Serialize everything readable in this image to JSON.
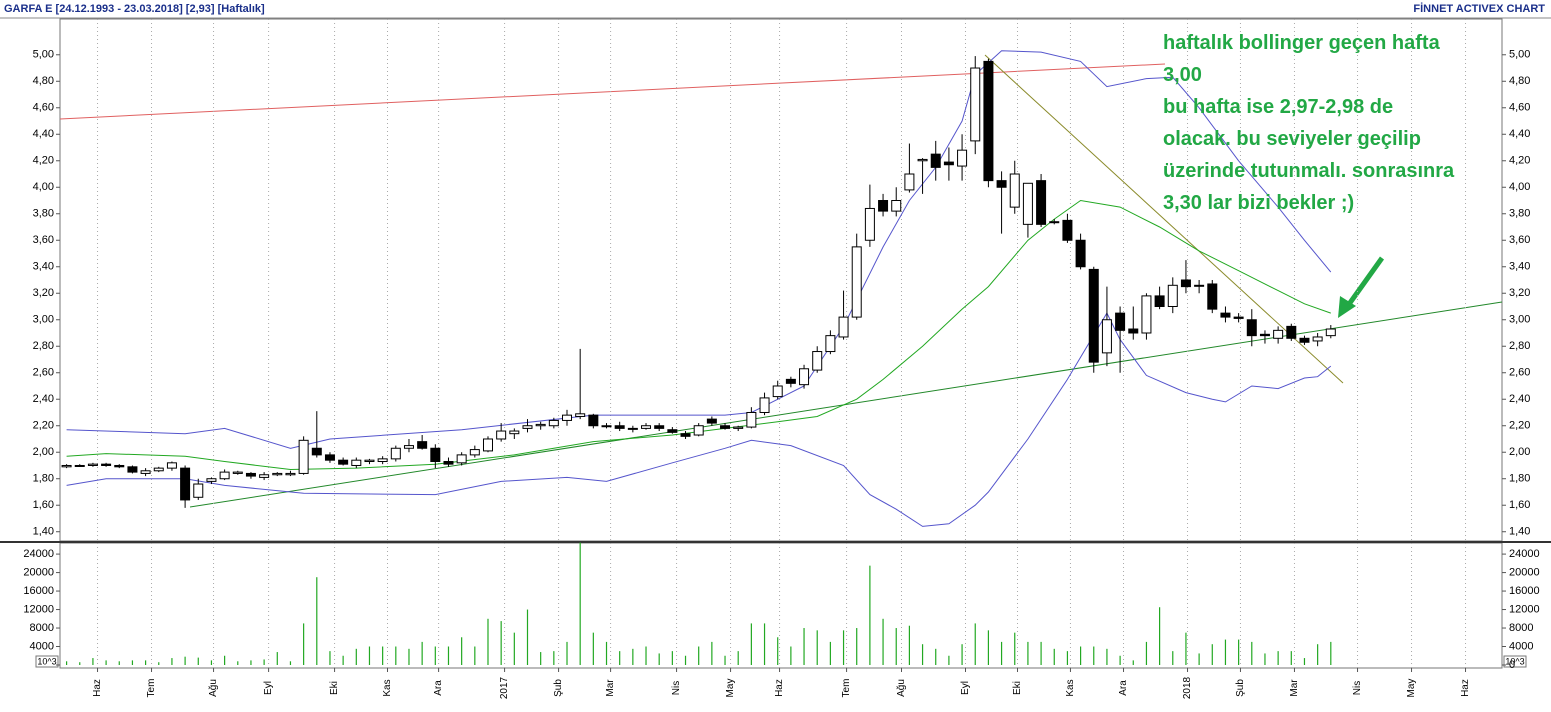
{
  "chart_data": {
    "type": "candlestick",
    "title": "GARFA E  [24.12.1993 - 23.03.2018]  [2,93]  [Haftalık]",
    "source": "FİNNET ACTIVEX CHART",
    "annotation": [
      "haftalık bollinger geçen hafta",
      "3,00",
      "bu hafta ise 2,97-2,98 de",
      "olacak. bu seviyeler geçilip",
      "üzerinde tutunmalı. sonrasınra",
      "3,30 lar bizi bekler ;)"
    ],
    "open": [
      1.89,
      1.9,
      1.9,
      1.91,
      1.9,
      1.89,
      1.84,
      1.86,
      1.88,
      1.88,
      1.66,
      1.78,
      1.8,
      1.84,
      1.84,
      1.81,
      1.83,
      1.83,
      1.84,
      2.03,
      1.98,
      1.94,
      1.9,
      1.93,
      1.93,
      1.95,
      2.03,
      2.08,
      2.03,
      1.93,
      1.92,
      1.98,
      2.01,
      2.1,
      2.14,
      2.18,
      2.2,
      2.2,
      2.24,
      2.27,
      2.28,
      2.2,
      2.2,
      2.18,
      2.18,
      2.2,
      2.17,
      2.14,
      2.13,
      2.25,
      2.2,
      2.18,
      2.19,
      2.3,
      2.42,
      2.55,
      2.51,
      2.62,
      2.76,
      2.87,
      3.02,
      3.6,
      3.9,
      3.82,
      3.98,
      4.2,
      4.25,
      4.19,
      4.16,
      4.35,
      4.95,
      4.05,
      3.85,
      3.72,
      4.05,
      3.74,
      3.75,
      3.6,
      3.38,
      2.75,
      3.05,
      2.93,
      2.9,
      3.18,
      3.1,
      3.3,
      3.26,
      3.27,
      3.05,
      3.02,
      3.0,
      2.89,
      2.86,
      2.95,
      2.86,
      2.84,
      2.88
    ],
    "high": [
      1.91,
      1.91,
      1.92,
      1.92,
      1.91,
      1.9,
      1.88,
      1.89,
      1.93,
      1.9,
      1.8,
      1.81,
      1.87,
      1.86,
      1.85,
      1.85,
      1.85,
      1.86,
      2.12,
      2.31,
      2.0,
      1.96,
      1.96,
      1.95,
      1.97,
      2.05,
      2.1,
      2.13,
      2.06,
      1.96,
      2.0,
      2.05,
      2.12,
      2.22,
      2.18,
      2.25,
      2.23,
      2.26,
      2.32,
      2.78,
      2.29,
      2.22,
      2.23,
      2.2,
      2.22,
      2.22,
      2.19,
      2.16,
      2.22,
      2.27,
      2.22,
      2.2,
      2.34,
      2.45,
      2.54,
      2.57,
      2.66,
      2.8,
      2.92,
      3.22,
      3.65,
      4.02,
      3.95,
      4.0,
      4.33,
      4.22,
      4.35,
      4.3,
      4.4,
      4.99,
      4.97,
      4.12,
      4.2,
      4.03,
      4.1,
      3.76,
      3.8,
      3.65,
      3.4,
      3.25,
      3.1,
      3.1,
      3.2,
      3.25,
      3.32,
      3.45,
      3.3,
      3.3,
      3.1,
      3.05,
      3.08,
      2.92,
      2.95,
      2.97,
      2.88,
      2.9,
      2.96
    ],
    "low": [
      1.88,
      1.89,
      1.89,
      1.89,
      1.88,
      1.84,
      1.82,
      1.85,
      1.86,
      1.58,
      1.64,
      1.76,
      1.79,
      1.83,
      1.8,
      1.79,
      1.82,
      1.82,
      1.83,
      1.96,
      1.92,
      1.9,
      1.88,
      1.91,
      1.91,
      1.93,
      2.0,
      2.02,
      1.88,
      1.89,
      1.9,
      1.96,
      2.0,
      2.08,
      2.1,
      2.15,
      2.17,
      2.18,
      2.2,
      2.25,
      2.18,
      2.18,
      2.16,
      2.15,
      2.17,
      2.16,
      2.14,
      2.1,
      2.12,
      2.2,
      2.17,
      2.16,
      2.18,
      2.28,
      2.4,
      2.49,
      2.48,
      2.6,
      2.74,
      2.85,
      3.0,
      3.55,
      3.78,
      3.78,
      3.96,
      3.95,
      4.05,
      4.05,
      4.05,
      4.25,
      4.0,
      3.65,
      3.8,
      3.62,
      3.7,
      3.72,
      3.58,
      3.38,
      2.6,
      2.65,
      2.6,
      2.85,
      2.85,
      3.08,
      3.05,
      3.2,
      3.2,
      3.05,
      2.98,
      2.98,
      2.8,
      2.82,
      2.82,
      2.84,
      2.81,
      2.8,
      2.86
    ],
    "close": [
      1.9,
      1.9,
      1.91,
      1.9,
      1.89,
      1.85,
      1.86,
      1.88,
      1.92,
      1.64,
      1.76,
      1.8,
      1.85,
      1.85,
      1.82,
      1.83,
      1.84,
      1.84,
      2.09,
      1.98,
      1.94,
      1.91,
      1.94,
      1.94,
      1.95,
      2.03,
      2.05,
      2.03,
      1.93,
      1.91,
      1.98,
      2.02,
      2.1,
      2.16,
      2.16,
      2.2,
      2.21,
      2.24,
      2.28,
      2.29,
      2.2,
      2.2,
      2.18,
      2.18,
      2.2,
      2.18,
      2.15,
      2.12,
      2.2,
      2.22,
      2.18,
      2.19,
      2.3,
      2.41,
      2.5,
      2.52,
      2.63,
      2.76,
      2.88,
      3.02,
      3.55,
      3.84,
      3.82,
      3.9,
      4.1,
      4.21,
      4.15,
      4.17,
      4.28,
      4.9,
      4.05,
      4.0,
      4.1,
      4.03,
      3.72,
      3.74,
      3.6,
      3.4,
      2.68,
      3.0,
      2.92,
      2.9,
      3.18,
      3.1,
      3.26,
      3.25,
      3.26,
      3.08,
      3.02,
      3.01,
      2.88,
      2.88,
      2.92,
      2.86,
      2.83,
      2.87,
      2.93
    ],
    "volume": [
      800,
      600,
      1500,
      1000,
      800,
      1000,
      1000,
      600,
      1500,
      1800,
      1600,
      1000,
      2000,
      800,
      1000,
      1200,
      2800,
      800,
      9000,
      19000,
      3000,
      2000,
      3500,
      4000,
      4000,
      4000,
      3500,
      5000,
      4000,
      4000,
      6000,
      4000,
      10000,
      9500,
      7000,
      12000,
      2800,
      3000,
      5000,
      26500,
      7000,
      5000,
      3000,
      3500,
      4000,
      2500,
      3000,
      2000,
      4000,
      5000,
      2000,
      3000,
      9000,
      9000,
      6000,
      4000,
      8000,
      7500,
      5000,
      7500,
      8000,
      21500,
      10000,
      8000,
      8500,
      4500,
      3500,
      2000,
      4500,
      9000,
      7500,
      5000,
      7000,
      5000,
      5000,
      3500,
      3000,
      4000,
      4000,
      3500,
      2000,
      1000,
      5000,
      12500,
      3000,
      7000,
      2500,
      4500,
      5500,
      5500,
      5000,
      2500,
      3000,
      3000,
      1500,
      4500,
      5000
    ],
    "volume_color": "#22a822",
    "volume_unit": "10^3",
    "bands": [
      {
        "color": "#5555cc",
        "x": [
          0,
          9,
          12,
          17,
          20,
          30,
          40,
          45,
          50,
          52,
          56,
          59,
          62,
          64,
          66,
          68,
          69,
          71,
          74,
          77,
          79,
          82,
          84,
          86,
          89,
          92,
          94,
          96
        ],
        "values": [
          2.17,
          2.14,
          2.18,
          2.03,
          2.1,
          2.17,
          2.28,
          2.28,
          2.28,
          2.3,
          2.5,
          2.95,
          3.55,
          3.9,
          4.15,
          4.5,
          4.85,
          5.03,
          5.02,
          4.95,
          4.76,
          4.82,
          4.83,
          4.6,
          4.2,
          3.85,
          3.6,
          3.36
        ]
      },
      {
        "color": "#22a822",
        "x": [
          0,
          3,
          9,
          12,
          17,
          22,
          28,
          34,
          40,
          46,
          50,
          54,
          57,
          60,
          62,
          65,
          68,
          70,
          73,
          75,
          77,
          80,
          83,
          86,
          89,
          92,
          94,
          96
        ],
        "values": [
          1.97,
          1.99,
          1.97,
          1.93,
          1.87,
          1.88,
          1.91,
          1.98,
          2.08,
          2.13,
          2.18,
          2.23,
          2.27,
          2.4,
          2.55,
          2.8,
          3.08,
          3.25,
          3.6,
          3.76,
          3.9,
          3.85,
          3.7,
          3.52,
          3.37,
          3.22,
          3.12,
          3.05
        ]
      },
      {
        "color": "#5555cc",
        "x": [
          0,
          3,
          9,
          12,
          18,
          28,
          33,
          38,
          41,
          46,
          50,
          52,
          55,
          59,
          61,
          63,
          65,
          67,
          69,
          70,
          73,
          76,
          79,
          80,
          82,
          85,
          87,
          88,
          90,
          92,
          94,
          95,
          96
        ],
        "values": [
          1.75,
          1.8,
          1.8,
          1.75,
          1.69,
          1.68,
          1.78,
          1.81,
          1.78,
          1.92,
          2.03,
          2.09,
          2.05,
          1.9,
          1.68,
          1.57,
          1.44,
          1.46,
          1.6,
          1.7,
          2.1,
          2.55,
          3.05,
          2.85,
          2.58,
          2.45,
          2.4,
          2.38,
          2.5,
          2.48,
          2.56,
          2.57,
          2.65
        ]
      }
    ],
    "up_color": "#ffffff",
    "down_color": "#000000",
    "xlim": [
      -0.5,
      109
    ],
    "ylim": [
      1.33,
      5.27
    ],
    "y2lim": [
      -650,
      26400
    ],
    "xticks": [
      {
        "value": 2.35,
        "label": "Haz"
      },
      {
        "value": 6.45,
        "label": "Tem"
      },
      {
        "value": 11.16,
        "label": "Ağu"
      },
      {
        "value": 15.34,
        "label": "Eyl"
      },
      {
        "value": 20.35,
        "label": "Eki"
      },
      {
        "value": 24.37,
        "label": "Kas"
      },
      {
        "value": 28.25,
        "label": "Ara"
      },
      {
        "value": 33.26,
        "label": "2017"
      },
      {
        "value": 37.36,
        "label": "Şub"
      },
      {
        "value": 41.31,
        "label": "Mar"
      },
      {
        "value": 46.32,
        "label": "Nis"
      },
      {
        "value": 50.42,
        "label": "May"
      },
      {
        "value": 54.14,
        "label": "Haz"
      },
      {
        "value": 59.23,
        "label": "Tem"
      },
      {
        "value": 63.4,
        "label": "Ağu"
      },
      {
        "value": 68.26,
        "label": "Eyl"
      },
      {
        "value": 72.21,
        "label": "Eki"
      },
      {
        "value": 76.23,
        "label": "Kas"
      },
      {
        "value": 80.26,
        "label": "Ara"
      },
      {
        "value": 85.12,
        "label": "2018"
      },
      {
        "value": 89.14,
        "label": "Şub"
      },
      {
        "value": 93.24,
        "label": "Mar"
      },
      {
        "value": 98.03,
        "label": "Nis"
      },
      {
        "value": 102.13,
        "label": "May"
      },
      {
        "value": 106.23,
        "label": "Haz"
      }
    ],
    "yticks": [
      {
        "value": 1.4,
        "label": "1,40"
      },
      {
        "value": 1.6,
        "label": "1,60"
      },
      {
        "value": 1.8,
        "label": "1,80"
      },
      {
        "value": 2.0,
        "label": "2,00"
      },
      {
        "value": 2.2,
        "label": "2,20"
      },
      {
        "value": 2.4,
        "label": "2,40"
      },
      {
        "value": 2.6,
        "label": "2,60"
      },
      {
        "value": 2.8,
        "label": "2,80"
      },
      {
        "value": 3.0,
        "label": "3,00"
      },
      {
        "value": 3.2,
        "label": "3,20"
      },
      {
        "value": 3.4,
        "label": "3,40"
      },
      {
        "value": 3.6,
        "label": "3,60"
      },
      {
        "value": 3.8,
        "label": "3,80"
      },
      {
        "value": 4.0,
        "label": "4,00"
      },
      {
        "value": 4.2,
        "label": "4,20"
      },
      {
        "value": 4.4,
        "label": "4,40"
      },
      {
        "value": 4.6,
        "label": "4,60"
      },
      {
        "value": 4.8,
        "label": "4,80"
      },
      {
        "value": 5.0,
        "label": "5,00"
      }
    ],
    "y2ticks": [
      0,
      4000,
      8000,
      12000,
      16000,
      20000,
      24000
    ],
    "grid": "x"
  }
}
